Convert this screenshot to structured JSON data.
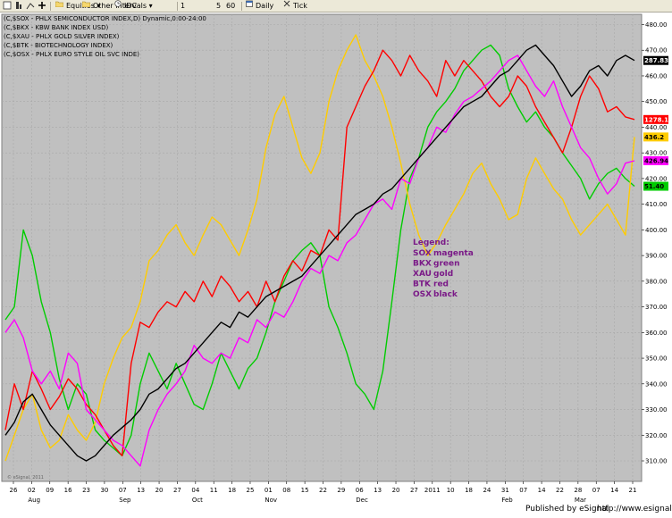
{
  "toolbar": {
    "items": [
      {
        "label": "Equities",
        "icon": "folder-icon",
        "dropdown": true
      },
      {
        "label": "Other Intervals",
        "icon": "folder-icon",
        "dropdown": true
      },
      {
        "label": "IDC",
        "icon": "clock-icon"
      },
      {
        "label": "1"
      },
      {
        "label": "5"
      },
      {
        "label": "60"
      },
      {
        "label": "Daily",
        "icon": "calendar-icon"
      },
      {
        "label": "Tick",
        "icon": "tick-icon"
      }
    ]
  },
  "header_lines": [
    "(C,$SOX - PHLX SEMICONDUCTOR INDEX,D) Dynamic,0:00-24:00",
    "(C,$BKX - KBW BANK INDEX USD)",
    "(C,$XAU - PHLX GOLD SILVER INDEX)",
    "(C,$BTK - BIOTECHNOLOGY INDEX)",
    "(C,$OSX - PHLX EURO STYLE OIL SVC INDE)"
  ],
  "legend": {
    "title": "Legend:",
    "rows": [
      {
        "sym": "SOX",
        "color_name": "magenta"
      },
      {
        "sym": "BKX",
        "color_name": "green"
      },
      {
        "sym": "XAU",
        "color_name": "gold"
      },
      {
        "sym": "BTK",
        "color_name": "red"
      },
      {
        "sym": "OSX",
        "color_name": "black"
      }
    ]
  },
  "footer": {
    "publisher": "Published by eSignal",
    "url": "http://www.esignal.com",
    "watermark": "© eSignal, 2011"
  },
  "colors": {
    "plot_bg": "#c0c0c0",
    "frame_bg": "#ffffff",
    "grid": "#a8a8a8",
    "legend_text": "#7a1a87"
  },
  "chart_data": {
    "type": "line",
    "ylim": [
      302,
      484
    ],
    "y_ticks": [
      310,
      320,
      330,
      340,
      350,
      360,
      370,
      380,
      390,
      400,
      410,
      420,
      430,
      440,
      450,
      460,
      470,
      480
    ],
    "y_axis_side": "right",
    "grid": true,
    "x_tick_labels": [
      "26",
      "02",
      "09",
      "16",
      "23",
      "30",
      "07",
      "13",
      "20",
      "27",
      "04",
      "11",
      "18",
      "25",
      "01",
      "08",
      "15",
      "22",
      "29",
      "06",
      "13",
      "20",
      "27",
      "2011",
      "10",
      "18",
      "24",
      "31",
      "07",
      "14",
      "22",
      "28",
      "07",
      "14",
      "21"
    ],
    "month_labels": [
      {
        "label": "Aug",
        "at_tick": 1
      },
      {
        "label": "Sep",
        "at_tick": 6
      },
      {
        "label": "Oct",
        "at_tick": 10
      },
      {
        "label": "Nov",
        "at_tick": 14
      },
      {
        "label": "Dec",
        "at_tick": 19
      },
      {
        "label": "Feb",
        "at_tick": 27
      },
      {
        "label": "Mar",
        "at_tick": 31
      }
    ],
    "series": [
      {
        "name": "SOX",
        "color": "#ff00ff",
        "last_value": "426.94",
        "values": [
          360,
          365,
          358,
          345,
          340,
          345,
          338,
          352,
          348,
          330,
          326,
          322,
          318,
          316,
          312,
          308,
          322,
          330,
          336,
          340,
          345,
          355,
          350,
          348,
          352,
          350,
          358,
          356,
          365,
          362,
          368,
          366,
          372,
          380,
          385,
          383,
          390,
          388,
          395,
          398,
          404,
          410,
          412,
          408,
          420,
          418,
          428,
          432,
          440,
          438,
          445,
          450,
          452,
          455,
          458,
          462,
          466,
          468,
          462,
          456,
          452,
          458,
          448,
          440,
          432,
          428,
          420,
          414,
          418,
          426,
          426.94
        ]
      },
      {
        "name": "BKX",
        "color": "#00cc00",
        "last_value": "51.40",
        "values": [
          365,
          370,
          400,
          390,
          372,
          360,
          342,
          330,
          340,
          336,
          322,
          318,
          315,
          312,
          320,
          340,
          352,
          345,
          338,
          348,
          340,
          332,
          330,
          340,
          352,
          345,
          338,
          346,
          350,
          360,
          372,
          380,
          388,
          392,
          395,
          390,
          370,
          362,
          352,
          340,
          336,
          330,
          345,
          372,
          400,
          420,
          428,
          440,
          446,
          450,
          455,
          462,
          466,
          470,
          472,
          468,
          455,
          448,
          442,
          446,
          440,
          436,
          430,
          425,
          420,
          412,
          418,
          422,
          424,
          420,
          417
        ]
      },
      {
        "name": "XAU",
        "color": "#ffcc00",
        "last_value": "436.2",
        "values": [
          310,
          320,
          330,
          336,
          322,
          315,
          318,
          328,
          322,
          318,
          325,
          340,
          350,
          358,
          362,
          372,
          388,
          392,
          398,
          402,
          395,
          390,
          398,
          405,
          402,
          396,
          390,
          400,
          412,
          432,
          445,
          452,
          440,
          428,
          422,
          430,
          450,
          462,
          470,
          476,
          466,
          460,
          452,
          440,
          426,
          410,
          398,
          390,
          395,
          402,
          408,
          414,
          422,
          426,
          418,
          412,
          404,
          406,
          420,
          428,
          422,
          416,
          412,
          404,
          398,
          402,
          406,
          410,
          404,
          398,
          436.2
        ]
      },
      {
        "name": "BTK",
        "color": "#ff0000",
        "last_value": "1278.12",
        "values": [
          322,
          340,
          330,
          345,
          338,
          330,
          335,
          342,
          338,
          332,
          328,
          322,
          316,
          312,
          348,
          364,
          362,
          368,
          372,
          370,
          376,
          372,
          380,
          374,
          382,
          378,
          372,
          376,
          370,
          380,
          372,
          382,
          388,
          384,
          392,
          390,
          400,
          396,
          440,
          448,
          456,
          462,
          470,
          466,
          460,
          468,
          462,
          458,
          452,
          466,
          460,
          466,
          462,
          458,
          452,
          448,
          452,
          460,
          456,
          448,
          442,
          436,
          430,
          440,
          452,
          460,
          455,
          446,
          448,
          444,
          443
        ]
      },
      {
        "name": "OSX",
        "color": "#000000",
        "last_value": "287.83",
        "values": [
          320,
          325,
          333,
          336,
          330,
          324,
          320,
          316,
          312,
          310,
          312,
          316,
          320,
          323,
          326,
          330,
          336,
          338,
          342,
          346,
          348,
          352,
          356,
          360,
          364,
          362,
          368,
          366,
          370,
          374,
          376,
          378,
          380,
          382,
          386,
          390,
          394,
          398,
          402,
          406,
          408,
          410,
          414,
          416,
          420,
          424,
          428,
          432,
          436,
          440,
          444,
          448,
          450,
          452,
          456,
          460,
          462,
          466,
          470,
          472,
          468,
          464,
          458,
          452,
          456,
          462,
          464,
          460,
          466,
          468,
          466
        ]
      }
    ]
  }
}
